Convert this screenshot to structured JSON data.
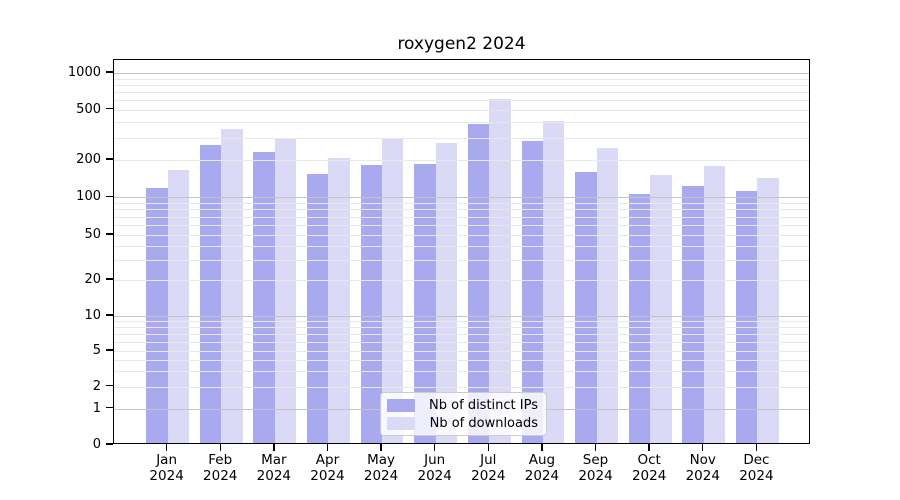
{
  "title": "roxygen2 2024",
  "chart_data": {
    "type": "bar",
    "title": "roxygen2 2024",
    "categories": [
      "Jan",
      "Feb",
      "Mar",
      "Apr",
      "May",
      "Jun",
      "Jul",
      "Aug",
      "Sep",
      "Oct",
      "Nov",
      "Dec"
    ],
    "category_year_line": "2024",
    "series": [
      {
        "name": "Nb of distinct IPs",
        "color": "#a9a9ef",
        "values": [
          114,
          253,
          224,
          149,
          176,
          180,
          368,
          272,
          153,
          103,
          118,
          108
        ]
      },
      {
        "name": "Nb of downloads",
        "color": "#dadaf7",
        "values": [
          160,
          338,
          286,
          200,
          282,
          261,
          588,
          389,
          240,
          146,
          172,
          139
        ]
      }
    ],
    "yticks": [
      0,
      1,
      2,
      5,
      10,
      20,
      50,
      100,
      200,
      500,
      1000
    ],
    "ylim": [
      0,
      1000
    ],
    "yscale": "log-like above 1, compressed linear segment between 0 and 1",
    "xlabel": "",
    "ylabel": "",
    "grid": "on (horizontal major + log minor lines, drawn over bars)",
    "legend_position": "lower center inside plot"
  }
}
